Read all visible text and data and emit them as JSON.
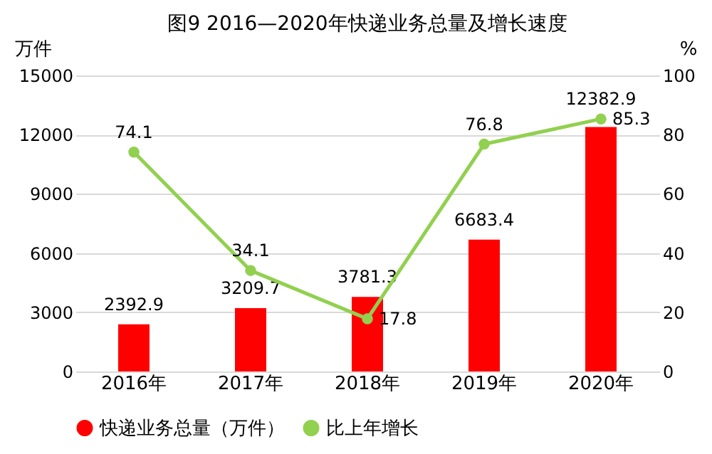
{
  "chart_data": {
    "type": "bar",
    "title": "图9  2016—2020年快递业务总量及增长速度",
    "categories": [
      "2016年",
      "2017年",
      "2018年",
      "2019年",
      "2020年"
    ],
    "series": [
      {
        "name": "快递业务总量（万件）",
        "type": "bar",
        "color": "#ff0000",
        "values": [
          2392.9,
          3209.7,
          3781.3,
          6683.4,
          12382.9
        ]
      },
      {
        "name": "比上年增长",
        "type": "line",
        "axis": "y2",
        "color": "#92d050",
        "values": [
          74.1,
          34.1,
          17.8,
          76.8,
          85.3
        ]
      }
    ],
    "ylabel": "万件",
    "y2label": "%",
    "ylim": [
      0,
      15000
    ],
    "yticks": [
      0,
      3000,
      6000,
      9000,
      12000,
      15000
    ],
    "y2lim": [
      0,
      100
    ],
    "y2ticks": [
      0,
      20,
      40,
      60,
      80,
      100
    ],
    "data_labels": true,
    "grid": "y",
    "legend": "bottom",
    "marker": "circle",
    "line_style": "solid"
  }
}
